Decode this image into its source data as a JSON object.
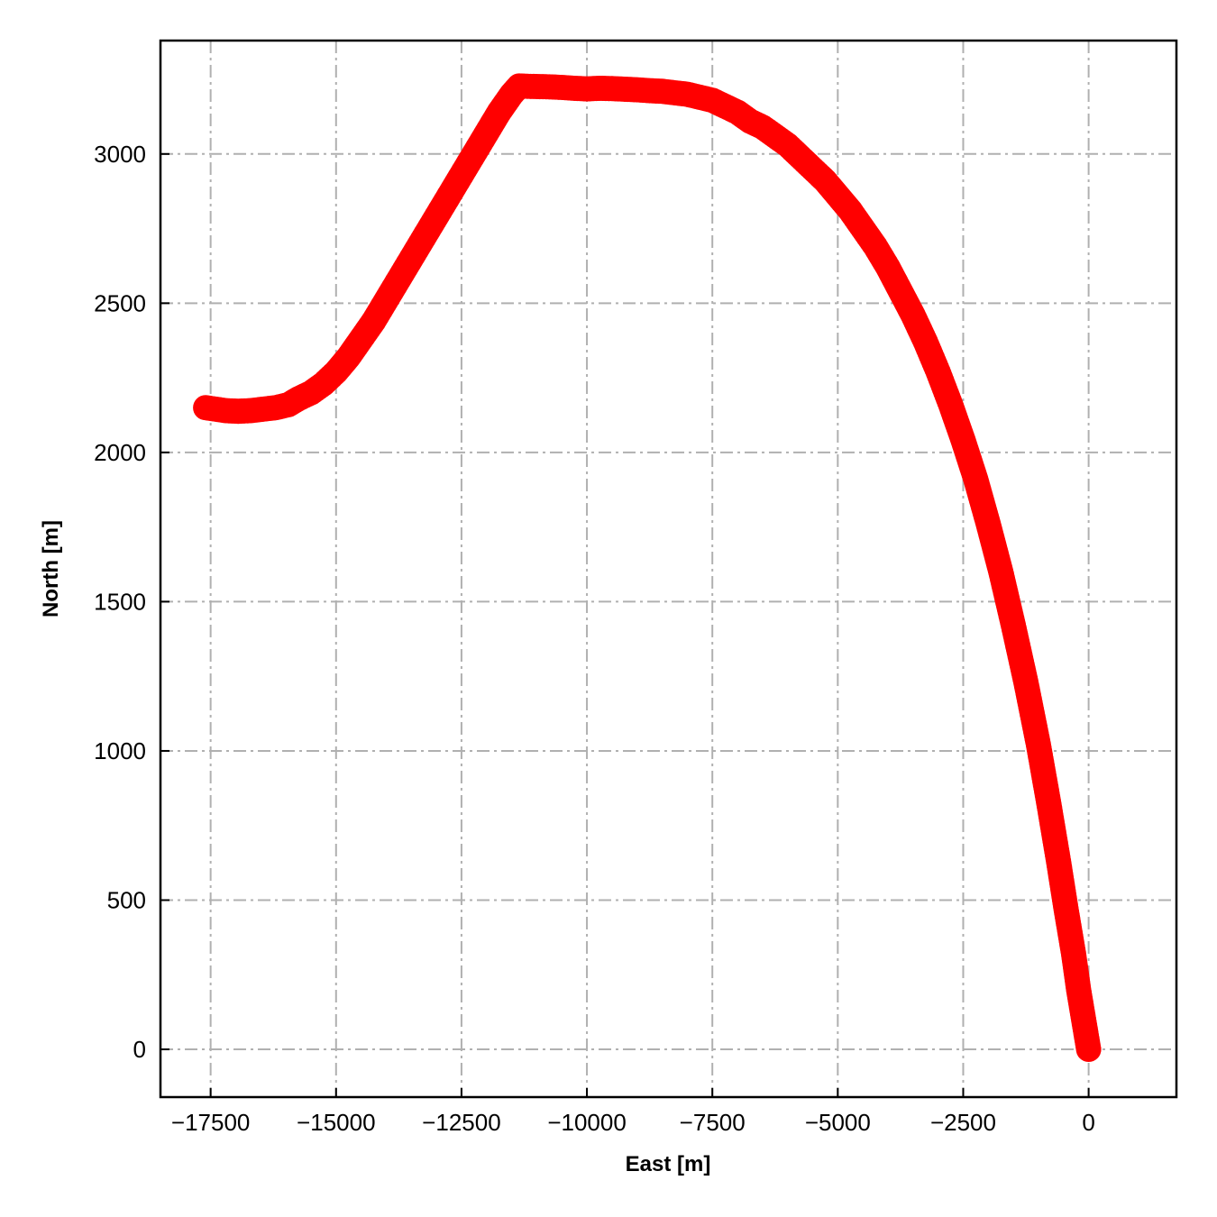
{
  "chart_data": {
    "type": "scatter",
    "xlabel": "East [m]",
    "ylabel": "North [m]",
    "xlim": [
      -18500,
      1750
    ],
    "ylim": [
      -160,
      3380
    ],
    "x_ticks": [
      -17500,
      -15000,
      -12500,
      -10000,
      -7500,
      -5000,
      -2500,
      0
    ],
    "x_tick_labels": [
      "−17500",
      "−15000",
      "−12500",
      "−10000",
      "−7500",
      "−5000",
      "−2500",
      "0"
    ],
    "y_ticks": [
      0,
      500,
      1000,
      1500,
      2000,
      2500,
      3000
    ],
    "y_tick_labels": [
      "0",
      "500",
      "1000",
      "1500",
      "2000",
      "2500",
      "3000"
    ],
    "grid": true,
    "marker_color": "#ff0000",
    "series": [
      {
        "x": [
          0,
          -100,
          -200,
          -300,
          -450,
          -600,
          -800,
          -1000,
          -1250,
          -1500,
          -1750,
          -2000,
          -2250,
          -2500,
          -2750,
          -3000,
          -3250,
          -3500,
          -3750,
          -4000,
          -4250,
          -4500,
          -4750,
          -5000,
          -5250,
          -5500,
          -5750,
          -6000,
          -6250,
          -6500,
          -6750,
          -7000,
          -7250,
          -7500,
          -7750,
          -8000,
          -8250,
          -8500,
          -8750,
          -9000,
          -9250,
          -9500,
          -9750,
          -10000,
          -10250,
          -10500,
          -10750,
          -11000,
          -11250,
          -11350,
          -11500,
          -11750,
          -12000,
          -12250,
          -12500,
          -12750,
          -13000,
          -13250,
          -13500,
          -13750,
          -14000,
          -14250,
          -14500,
          -14750,
          -15000,
          -15250,
          -15500,
          -15750,
          -15950,
          -16200,
          -16450,
          -16700,
          -16950,
          -17200,
          -17400,
          -17600
        ],
        "y": [
          0,
          100,
          200,
          320,
          470,
          630,
          830,
          1020,
          1230,
          1420,
          1600,
          1760,
          1910,
          2040,
          2160,
          2270,
          2370,
          2460,
          2540,
          2620,
          2690,
          2750,
          2810,
          2860,
          2910,
          2950,
          2990,
          3030,
          3060,
          3090,
          3110,
          3140,
          3160,
          3180,
          3190,
          3200,
          3205,
          3210,
          3212,
          3215,
          3217,
          3219,
          3220,
          3218,
          3220,
          3223,
          3225,
          3226,
          3227,
          3228,
          3200,
          3140,
          3070,
          3000,
          2930,
          2860,
          2790,
          2720,
          2650,
          2580,
          2510,
          2440,
          2380,
          2320,
          2270,
          2230,
          2200,
          2180,
          2160,
          2150,
          2145,
          2140,
          2138,
          2140,
          2145,
          2150
        ]
      }
    ]
  }
}
